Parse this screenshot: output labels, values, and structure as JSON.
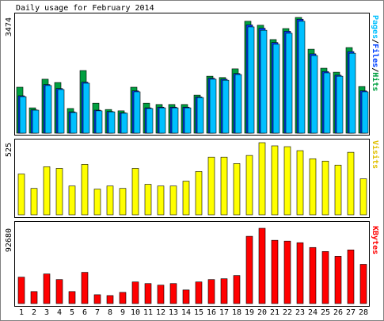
{
  "title": "Daily usage for February 2014",
  "chart_data": [
    {
      "type": "bar",
      "ylim": [
        0,
        3474
      ],
      "yticks": [
        3474
      ],
      "legend_separator": "/",
      "series": [
        {
          "name": "Hits",
          "color": "#00a040",
          "values": [
            1380,
            760,
            1620,
            1520,
            740,
            1880,
            900,
            710,
            670,
            1380,
            900,
            860,
            860,
            860,
            1140,
            1710,
            1670,
            1930,
            3360,
            3240,
            2810,
            3140,
            3474,
            2520,
            1950,
            1830,
            2570,
            1400
          ]
        },
        {
          "name": "Files",
          "color": "#0040ff",
          "values": [
            1120,
            700,
            1460,
            1340,
            640,
            1530,
            690,
            650,
            610,
            1270,
            760,
            780,
            780,
            780,
            1090,
            1650,
            1620,
            1790,
            3250,
            3150,
            2720,
            3060,
            3420,
            2380,
            1850,
            1740,
            2450,
            1270
          ]
        },
        {
          "name": "Pages",
          "color": "#00c0ff",
          "values": [
            1095,
            690,
            1430,
            1310,
            620,
            1500,
            670,
            640,
            600,
            1240,
            740,
            760,
            760,
            760,
            1070,
            1620,
            1590,
            1760,
            3190,
            3090,
            2670,
            3000,
            3360,
            2330,
            1810,
            1710,
            2400,
            1240
          ]
        }
      ]
    },
    {
      "type": "bar",
      "ylim": [
        0,
        525
      ],
      "yticks": [
        525
      ],
      "series": [
        {
          "name": "Visits",
          "color": "#ffff00",
          "values": [
            297,
            192,
            350,
            338,
            210,
            367,
            187,
            210,
            192,
            338,
            222,
            210,
            210,
            245,
            315,
            420,
            420,
            373,
            432,
            525,
            502,
            496,
            467,
            408,
            391,
            362,
            455,
            262
          ]
        }
      ]
    },
    {
      "type": "bar",
      "ylim": [
        0,
        92680
      ],
      "yticks": [
        92680
      ],
      "categories": [
        "1",
        "2",
        "3",
        "4",
        "5",
        "6",
        "7",
        "8",
        "9",
        "10",
        "11",
        "12",
        "13",
        "14",
        "15",
        "16",
        "17",
        "18",
        "19",
        "20",
        "21",
        "22",
        "23",
        "24",
        "25",
        "26",
        "27",
        "28"
      ],
      "category_label_colors": [
        "#008000",
        "#008000",
        "#000",
        "#000",
        "#000",
        "#000",
        "#000",
        "#008000",
        "#008000",
        "#000",
        "#000",
        "#000",
        "#000",
        "#000",
        "#008000",
        "#008000",
        "#000",
        "#000",
        "#000",
        "#000",
        "#000",
        "#008000",
        "#008000",
        "#000",
        "#000",
        "#000",
        "#000",
        "#000"
      ],
      "series": [
        {
          "name": "KBytes",
          "color": "#ff0000",
          "values": [
            32540,
            14790,
            36480,
            29580,
            14790,
            38450,
            10850,
            9860,
            13800,
            26620,
            24650,
            22680,
            24650,
            16760,
            26620,
            29580,
            30570,
            34510,
            82820,
            92680,
            77890,
            76900,
            74930,
            69020,
            64090,
            58170,
            66060,
            48310
          ]
        }
      ]
    }
  ]
}
